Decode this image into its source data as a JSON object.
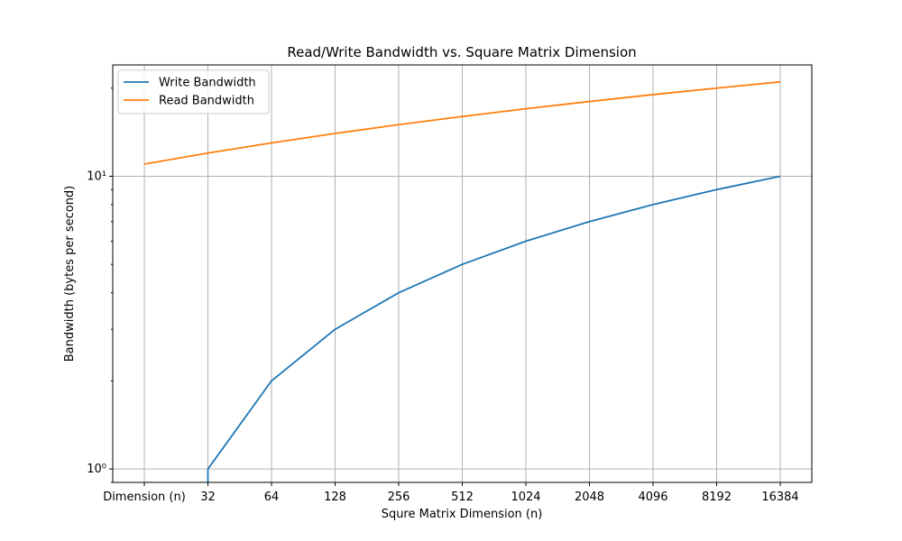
{
  "chart_data": {
    "type": "line",
    "title": "Read/Write Bandwidth vs. Square Matrix Dimension",
    "xlabel": "Squre Matrix Dimension (n)",
    "ylabel": "Bandwidth (bytes per second)",
    "yscale": "log",
    "ylim": [
      0.9,
      24
    ],
    "grid": true,
    "legend_position": "top-left",
    "categories": [
      "Dimension (n)",
      "32",
      "64",
      "128",
      "256",
      "512",
      "1024",
      "2048",
      "4096",
      "8192",
      "16384"
    ],
    "y_ticks": [
      {
        "value": 1,
        "label": "10⁰"
      },
      {
        "value": 10,
        "label": "10¹"
      }
    ],
    "series": [
      {
        "name": "Write Bandwidth",
        "color": "#1f77b4",
        "points": [
          {
            "x": "32",
            "y": 0.5
          },
          {
            "x": "32",
            "y": 1
          },
          {
            "x": "64",
            "y": 2
          },
          {
            "x": "128",
            "y": 3
          },
          {
            "x": "256",
            "y": 4
          },
          {
            "x": "512",
            "y": 5
          },
          {
            "x": "1024",
            "y": 6
          },
          {
            "x": "2048",
            "y": 7
          },
          {
            "x": "4096",
            "y": 8
          },
          {
            "x": "8192",
            "y": 9
          },
          {
            "x": "16384",
            "y": 10
          }
        ]
      },
      {
        "name": "Read Bandwidth",
        "color": "#ff7f0e",
        "points": [
          {
            "x": "Dimension (n)",
            "y": 11
          },
          {
            "x": "32",
            "y": 12
          },
          {
            "x": "64",
            "y": 13
          },
          {
            "x": "128",
            "y": 14
          },
          {
            "x": "256",
            "y": 15
          },
          {
            "x": "512",
            "y": 16
          },
          {
            "x": "1024",
            "y": 17
          },
          {
            "x": "2048",
            "y": 18
          },
          {
            "x": "4096",
            "y": 19
          },
          {
            "x": "8192",
            "y": 20
          },
          {
            "x": "16384",
            "y": 21
          }
        ]
      }
    ]
  }
}
